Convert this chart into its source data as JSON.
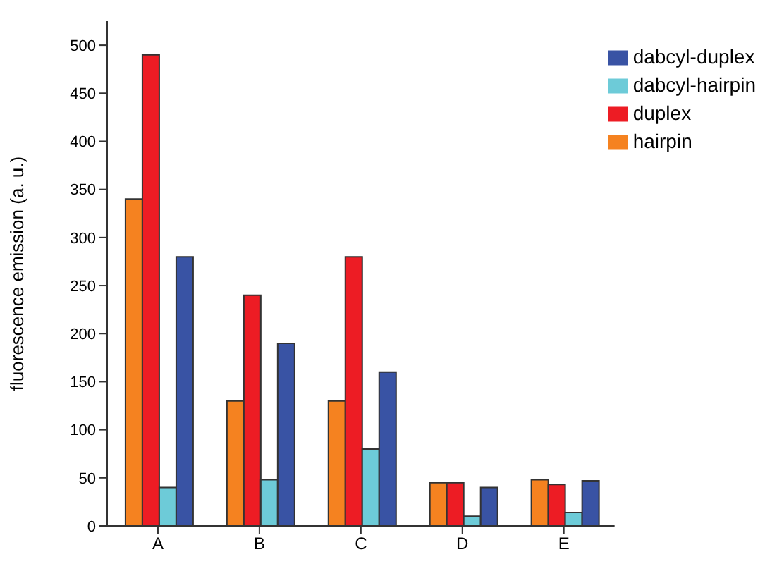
{
  "chart_data": {
    "type": "bar",
    "ylabel": "fluorescence emission (a. u.)",
    "categories": [
      "A",
      "B",
      "C",
      "D",
      "E"
    ],
    "series": [
      {
        "name": "hairpin",
        "color": "#f58220",
        "values": [
          340,
          130,
          130,
          45,
          48
        ]
      },
      {
        "name": "duplex",
        "color": "#ed1c24",
        "values": [
          490,
          240,
          280,
          45,
          43
        ]
      },
      {
        "name": "dabcyl-hairpin",
        "color": "#6dcbd8",
        "values": [
          40,
          48,
          80,
          10,
          14
        ]
      },
      {
        "name": "dabcyl-duplex",
        "color": "#3953a4",
        "values": [
          280,
          190,
          160,
          40,
          47
        ]
      }
    ],
    "ylim": [
      0,
      525
    ],
    "yticks": [
      0,
      50,
      100,
      150,
      200,
      250,
      300,
      350,
      400,
      450,
      500
    ],
    "grid": false,
    "legend": "top right"
  }
}
